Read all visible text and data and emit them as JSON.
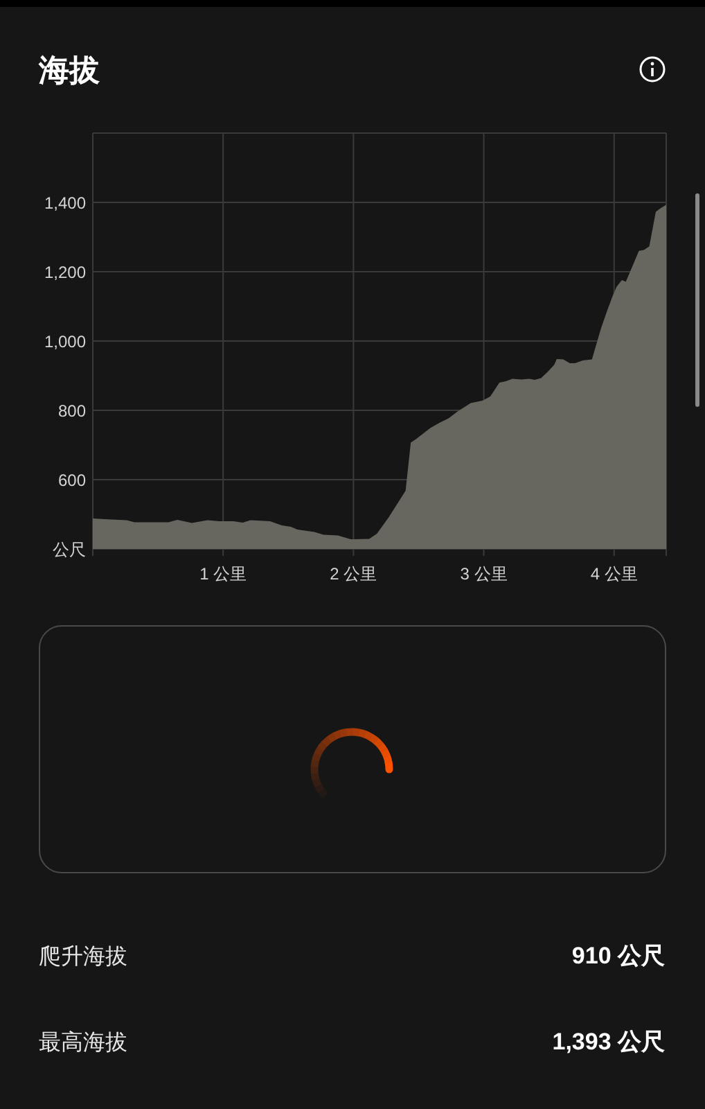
{
  "chart_data": {
    "type": "area",
    "title": "海拔",
    "x": [
      0,
      0.14,
      0.26,
      0.32,
      0.46,
      0.58,
      0.65,
      0.76,
      0.88,
      0.97,
      1.08,
      1.15,
      1.21,
      1.36,
      1.45,
      1.52,
      1.57,
      1.7,
      1.77,
      1.88,
      1.98,
      2.12,
      2.18,
      2.27,
      2.4,
      2.44,
      2.48,
      2.59,
      2.66,
      2.73,
      2.8,
      2.9,
      2.99,
      3.05,
      3.12,
      3.17,
      3.22,
      3.29,
      3.35,
      3.39,
      3.44,
      3.49,
      3.54,
      3.56,
      3.61,
      3.66,
      3.7,
      3.76,
      3.83,
      3.9,
      3.95,
      3.99,
      4.02,
      4.06,
      4.09,
      4.15,
      4.19,
      4.23,
      4.27,
      4.32,
      4.36,
      4.4
    ],
    "values": [
      488,
      485,
      483,
      477,
      477,
      477,
      484,
      475,
      483,
      480,
      480,
      476,
      483,
      480,
      468,
      464,
      456,
      449,
      441,
      439,
      428,
      429,
      444,
      491,
      568,
      707,
      717,
      749,
      764,
      777,
      797,
      821,
      828,
      840,
      880,
      884,
      891,
      889,
      891,
      888,
      893,
      911,
      931,
      948,
      947,
      936,
      936,
      944,
      947,
      1037,
      1091,
      1131,
      1157,
      1176,
      1171,
      1224,
      1260,
      1263,
      1273,
      1373,
      1384,
      1393
    ],
    "color": "#67665f",
    "xlim": [
      0,
      4.4
    ],
    "ylim": [
      400,
      1600
    ],
    "xticks": [
      {
        "value": 1,
        "label": "1 公里"
      },
      {
        "value": 2,
        "label": "2 公里"
      },
      {
        "value": 3,
        "label": "3 公里"
      },
      {
        "value": 4,
        "label": "4 公里"
      }
    ],
    "yticks": [
      {
        "value": 400,
        "label": "公尺"
      },
      600,
      800,
      {
        "value": 1000,
        "label": "1,000"
      },
      {
        "value": 1200,
        "label": "1,200"
      },
      {
        "value": 1400,
        "label": "1,400"
      }
    ],
    "grid": true,
    "annotations": [
      "爬升海拔",
      "910 公尺",
      "最高海拔",
      "1,393 公尺"
    ]
  }
}
